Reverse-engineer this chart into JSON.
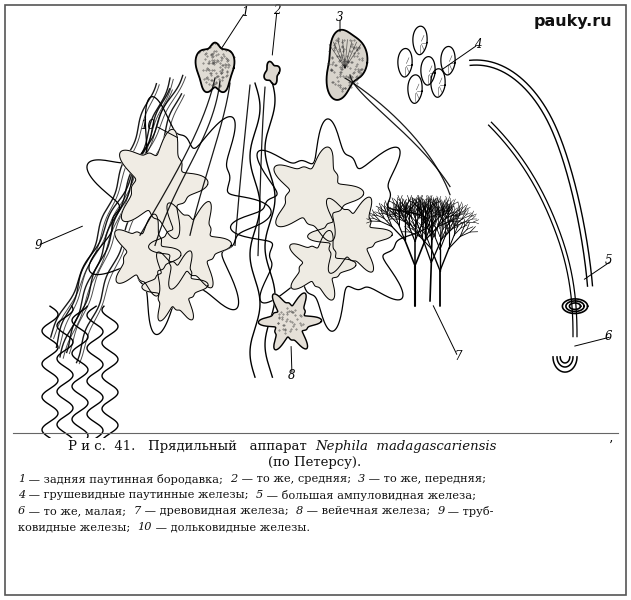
{
  "watermark": "pauky.ru",
  "bg_color": "#f5f2ed",
  "text_color": "#1a1a1a",
  "fig_width": 6.31,
  "fig_height": 6.0,
  "dpi": 100,
  "title_parts": [
    {
      "text": "Р и с .  41.   Прядильный   аппарат  ",
      "style": "normal"
    },
    {
      "text": "Nephila  madagascariensis",
      "style": "italic"
    },
    {
      "text": "’",
      "style": "normal"
    }
  ],
  "title_line2": "(по Петерсу).",
  "cap1_parts": [
    {
      "text": "1",
      "style": "italic"
    },
    {
      "text": " — задняя паутинная бородавка;  ",
      "style": "normal"
    },
    {
      "text": "2",
      "style": "italic"
    },
    {
      "text": " — то же, средняя;  ",
      "style": "normal"
    },
    {
      "text": "3",
      "style": "italic"
    },
    {
      "text": " — то же, передняя;",
      "style": "normal"
    }
  ],
  "cap2_parts": [
    {
      "text": "4",
      "style": "italic"
    },
    {
      "text": " — грушевидные паутинные железы;  ",
      "style": "normal"
    },
    {
      "text": "5",
      "style": "italic"
    },
    {
      "text": " — большая ампуловидная железа;",
      "style": "normal"
    }
  ],
  "cap3_parts": [
    {
      "text": "6",
      "style": "italic"
    },
    {
      "text": " — то же, малая;  ",
      "style": "normal"
    },
    {
      "text": "7",
      "style": "italic"
    },
    {
      "text": " — древовидная железа;  ",
      "style": "normal"
    },
    {
      "text": "8",
      "style": "italic"
    },
    {
      "text": " — вейечная железа;  ",
      "style": "normal"
    },
    {
      "text": "9",
      "style": "italic"
    },
    {
      "text": " — труб-",
      "style": "normal"
    }
  ],
  "cap4_parts": [
    {
      "text": "ковидные железы;  ",
      "style": "normal"
    },
    {
      "text": "10",
      "style": "italic"
    },
    {
      "text": " — дольковидные железы.",
      "style": "normal"
    }
  ]
}
